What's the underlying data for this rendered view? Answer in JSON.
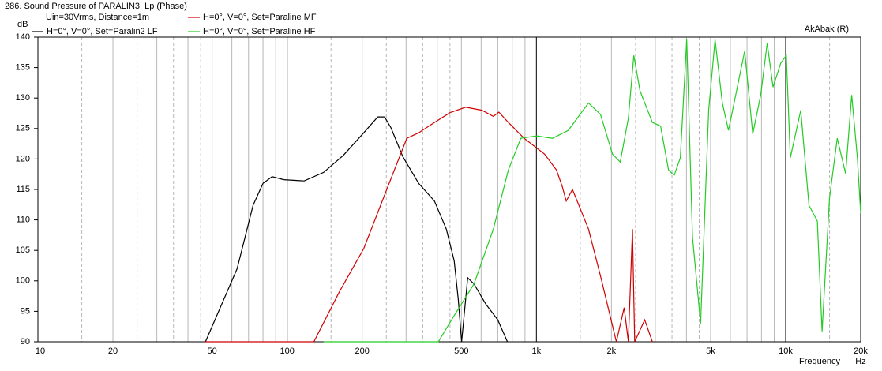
{
  "chart_data": {
    "type": "line",
    "title": "286. Sound Pressure of PARALIN3, Lp (Phase)",
    "subtitle": "Uin=30Vrms, Distance=1m",
    "watermark": "AkAbak (R)",
    "y_label": "dB",
    "x_label": "Frequency",
    "x_unit": "Hz",
    "xscale": "log",
    "xlim": [
      10,
      20000
    ],
    "ylim": [
      90,
      140
    ],
    "xticks": [
      10,
      20,
      50,
      100,
      200,
      500,
      {
        "value": 1000,
        "label": "1k"
      },
      {
        "value": 2000,
        "label": "2k"
      },
      {
        "value": 5000,
        "label": "5k"
      },
      {
        "value": 10000,
        "label": "10k"
      },
      {
        "value": 20000,
        "label": "20k"
      }
    ],
    "x_minor_ticks": [
      15,
      25,
      30,
      35,
      40,
      45,
      60,
      70,
      80,
      90,
      150,
      250,
      300,
      350,
      400,
      450,
      600,
      700,
      800,
      900,
      1500,
      2500,
      3000,
      3500,
      4000,
      4500,
      6000,
      7000,
      8000,
      9000,
      15000
    ],
    "yticks": [
      90,
      95,
      100,
      105,
      110,
      115,
      120,
      125,
      130,
      135,
      140
    ],
    "grid": true,
    "series": [
      {
        "name": "H=0°, V=0°, Set=Paralin2 LF",
        "color": "#000000",
        "x": [
          47,
          63,
          73,
          80,
          87,
          97,
          117,
          140,
          168,
          203,
          231,
          246,
          261,
          291,
          337,
          390,
          435,
          468,
          486,
          501,
          530,
          562,
          626,
          700,
          765
        ],
        "values": [
          90,
          102,
          112.4,
          116,
          117.1,
          116.6,
          116.4,
          117.8,
          120.6,
          124.3,
          126.9,
          126.9,
          125.1,
          120.4,
          116,
          113.1,
          108.5,
          103.3,
          96.9,
          90,
          100.5,
          99.5,
          96.2,
          93.6,
          90
        ]
      },
      {
        "name": "H=0°, V=0°, Set=Paraline MF",
        "color": "#d00000",
        "x": [
          47,
          128,
          162,
          203,
          251,
          302,
          337,
          390,
          450,
          520,
          604,
          672,
          707,
          772,
          893,
          1078,
          1203,
          1267,
          1317,
          1395,
          1501,
          1618,
          1808,
          2094,
          2251,
          2339,
          2430,
          2480,
          2720,
          2920
        ],
        "values": [
          90,
          90,
          98.2,
          105.3,
          115,
          123.4,
          124.3,
          126,
          127.6,
          128.5,
          128,
          127,
          127.7,
          126,
          123.4,
          120.8,
          118.2,
          115.6,
          113.1,
          115,
          111.8,
          108.5,
          100.8,
          90,
          95.6,
          90,
          108.5,
          90,
          93.6,
          90
        ]
      },
      {
        "name": "H=0°, V=0°, Set=Paraline HF",
        "color": "#22cc22",
        "x": [
          140,
          404,
          468,
          562,
          672,
          772,
          866,
          1003,
          1160,
          1343,
          1618,
          1808,
          2020,
          2170,
          2339,
          2460,
          2604,
          2920,
          3150,
          3390,
          3570,
          3780,
          4010,
          4230,
          4560,
          4910,
          5210,
          5570,
          5900,
          6850,
          7380,
          7940,
          8430,
          8900,
          9550,
          10060,
          10440,
          11500,
          12400,
          13400,
          14000,
          15000,
          16100,
          17400,
          18400,
          19400,
          20000
        ],
        "values": [
          90,
          90,
          94.3,
          99.5,
          108.5,
          118.2,
          123.4,
          123.8,
          123.4,
          124.7,
          129.2,
          127.3,
          120.8,
          119.5,
          126.7,
          137,
          131.2,
          126,
          125.4,
          118.2,
          117.3,
          120.2,
          139.6,
          107.2,
          93,
          128,
          139.6,
          129.2,
          124.7,
          137.7,
          124.1,
          130.5,
          139,
          131.8,
          135.7,
          137,
          120.2,
          128,
          112.4,
          109.8,
          91.7,
          113.7,
          123.4,
          117.6,
          130.5,
          120.2,
          111.1
        ]
      }
    ]
  }
}
